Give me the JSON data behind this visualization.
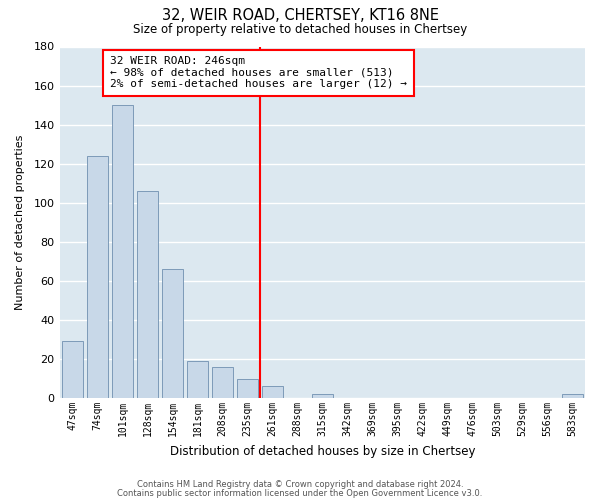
{
  "title": "32, WEIR ROAD, CHERTSEY, KT16 8NE",
  "subtitle": "Size of property relative to detached houses in Chertsey",
  "xlabel": "Distribution of detached houses by size in Chertsey",
  "ylabel": "Number of detached properties",
  "bar_labels": [
    "47sqm",
    "74sqm",
    "101sqm",
    "128sqm",
    "154sqm",
    "181sqm",
    "208sqm",
    "235sqm",
    "261sqm",
    "288sqm",
    "315sqm",
    "342sqm",
    "369sqm",
    "395sqm",
    "422sqm",
    "449sqm",
    "476sqm",
    "503sqm",
    "529sqm",
    "556sqm",
    "583sqm"
  ],
  "bar_values": [
    29,
    124,
    150,
    106,
    66,
    19,
    16,
    10,
    6,
    0,
    2,
    0,
    0,
    0,
    0,
    0,
    0,
    0,
    0,
    0,
    2
  ],
  "bar_color": "#c8d8e8",
  "bar_edge_color": "#7090b0",
  "vline_x": 7.5,
  "vline_color": "red",
  "ylim": [
    0,
    180
  ],
  "yticks": [
    0,
    20,
    40,
    60,
    80,
    100,
    120,
    140,
    160,
    180
  ],
  "annotation_title": "32 WEIR ROAD: 246sqm",
  "annotation_line1": "← 98% of detached houses are smaller (513)",
  "annotation_line2": "2% of semi-detached houses are larger (12) →",
  "annotation_box_color": "white",
  "annotation_box_edge": "red",
  "footer1": "Contains HM Land Registry data © Crown copyright and database right 2024.",
  "footer2": "Contains public sector information licensed under the Open Government Licence v3.0.",
  "figure_bg_color": "#ffffff",
  "plot_bg_color": "#dce8f0",
  "grid_color": "white"
}
